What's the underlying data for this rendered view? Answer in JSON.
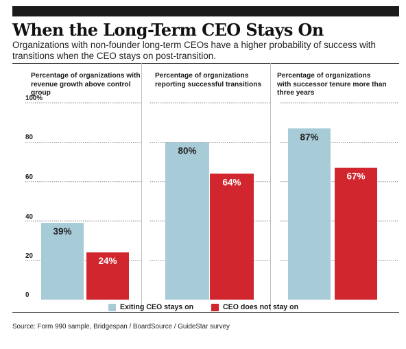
{
  "header": {
    "title": "When the Long-Term CEO Stays On",
    "subtitle": "Organizations with non-founder long-term CEOs have a higher probability of success with transitions when the CEO stays on post-transition."
  },
  "colors": {
    "exiting": "#a8cbd8",
    "stays": "#d2262e",
    "grid": "#555555"
  },
  "chart_data": {
    "type": "bar",
    "ylim": [
      0,
      100
    ],
    "yticks": [
      "100%",
      "80",
      "60",
      "40",
      "20",
      "0"
    ],
    "legend": {
      "exiting": "Exiting CEO stays on",
      "stays": "CEO does not stay on"
    },
    "panels": [
      {
        "title_lines": [
          "Percentage of organizations with",
          "revenue growth above control group"
        ],
        "values": [
          39,
          24
        ],
        "labels": [
          "39%",
          "24%"
        ]
      },
      {
        "title_lines": [
          "Percentage of organizations",
          "reporting successful transitions"
        ],
        "values": [
          80,
          64
        ],
        "labels": [
          "80%",
          "64%"
        ]
      },
      {
        "title_lines": [
          "Percentage of organizations",
          "with successor tenure more than",
          "three years"
        ],
        "values": [
          87,
          67
        ],
        "labels": [
          "87%",
          "67%"
        ]
      }
    ]
  },
  "footer": {
    "source": "Source: Form 990 sample, Bridgespan / BoardSource / GuideStar survey"
  }
}
